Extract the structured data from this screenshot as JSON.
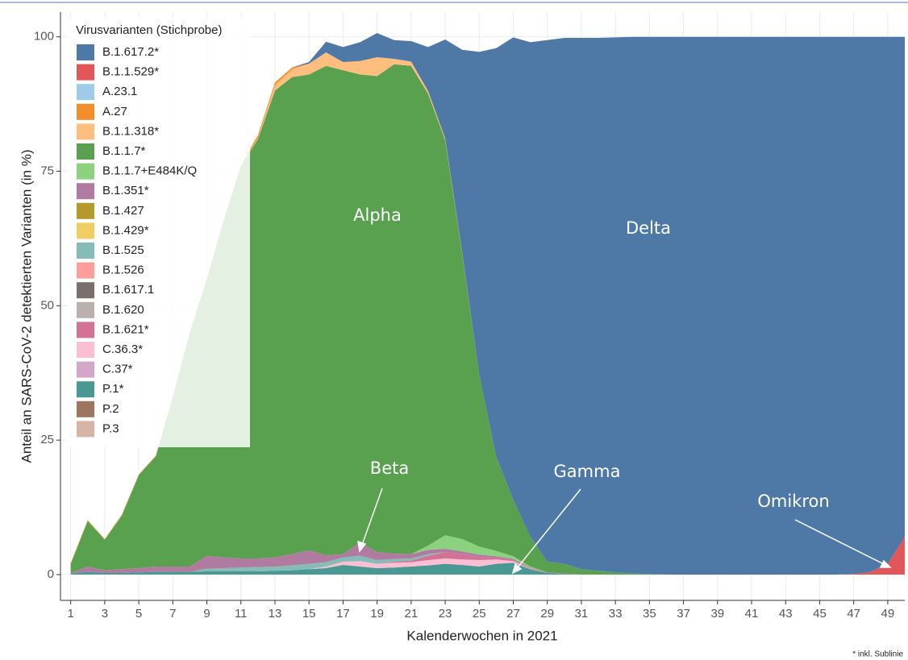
{
  "chart_data": {
    "type": "stacked-area",
    "ylabel": "Anteil an SARS-CoV-2 detektierten Varianten (in %)",
    "xlabel": "Kalenderwochen in 2021",
    "legend_title": "Virusvarianten (Stichprobe)",
    "footnote": "* inkl. Sublinie",
    "annotations": [
      "Alpha",
      "Delta",
      "Beta",
      "Gamma",
      "Omikron"
    ],
    "grid": true,
    "xlim": [
      0.4,
      50
    ],
    "ylim": [
      -4.8,
      104.6
    ],
    "xticks": [
      1,
      3,
      5,
      7,
      9,
      11,
      13,
      15,
      17,
      19,
      21,
      23,
      25,
      27,
      29,
      31,
      33,
      35,
      37,
      39,
      41,
      43,
      45,
      47,
      49
    ],
    "yticks": [
      0,
      25,
      50,
      75,
      100
    ],
    "x": [
      1,
      2,
      3,
      4,
      5,
      6,
      7,
      8,
      9,
      10,
      11,
      12,
      13,
      14,
      15,
      16,
      17,
      18,
      19,
      20,
      21,
      22,
      23,
      24,
      25,
      26,
      27,
      28,
      29,
      30,
      31,
      32,
      33,
      34,
      35,
      36,
      37,
      38,
      39,
      40,
      41,
      42,
      43,
      44,
      45,
      46,
      47,
      48,
      49,
      50
    ],
    "series": [
      {
        "name": "B.1.617.2*",
        "color": "#4e79a7",
        "values": [
          0,
          0,
          0,
          0,
          0,
          0,
          0,
          0,
          0,
          0,
          0,
          0,
          0,
          0,
          0.3,
          2,
          2.8,
          3.5,
          4.5,
          3.5,
          3.8,
          8.2,
          18.4,
          37.8,
          60,
          76,
          86,
          92,
          97,
          97.8,
          98.8,
          99.1,
          99.5,
          99.8,
          99.9,
          100,
          100,
          100,
          100,
          100,
          100,
          100,
          100,
          100,
          100,
          100,
          99.9,
          99.5,
          98,
          93
        ]
      },
      {
        "name": "B.1.1.529*",
        "color": "#e15759",
        "values": [
          0,
          0,
          0,
          0,
          0,
          0,
          0,
          0,
          0,
          0,
          0,
          0,
          0,
          0,
          0,
          0,
          0,
          0,
          0,
          0,
          0,
          0,
          0,
          0,
          0,
          0,
          0,
          0,
          0,
          0,
          0,
          0,
          0,
          0,
          0,
          0,
          0,
          0,
          0,
          0,
          0,
          0,
          0,
          0,
          0,
          0,
          0.1,
          0.5,
          2,
          7
        ]
      },
      {
        "name": "A.23.1",
        "color": "#a0cbe8",
        "values": [
          0,
          0,
          0,
          0,
          0,
          0,
          0,
          0,
          0,
          0,
          0,
          0,
          0,
          0,
          0,
          0,
          0,
          0,
          0,
          0,
          0,
          0,
          0,
          0,
          0,
          0,
          0,
          0,
          0,
          0,
          0,
          0,
          0,
          0,
          0,
          0,
          0,
          0,
          0,
          0,
          0,
          0,
          0,
          0,
          0,
          0,
          0,
          0,
          0,
          0
        ]
      },
      {
        "name": "A.27",
        "color": "#f28e2b",
        "values": [
          0,
          0,
          0,
          0,
          0,
          0,
          0,
          0,
          0,
          0,
          0,
          0.5,
          0.5,
          0.3,
          0,
          0,
          0,
          0,
          0,
          0,
          0,
          0,
          0,
          0,
          0,
          0,
          0,
          0,
          0,
          0,
          0,
          0,
          0,
          0,
          0,
          0,
          0,
          0,
          0,
          0,
          0,
          0,
          0,
          0,
          0,
          0,
          0,
          0,
          0,
          0
        ]
      },
      {
        "name": "B.1.1.318*",
        "color": "#ffbe7d",
        "values": [
          0.2,
          0.2,
          0.2,
          0.2,
          0.2,
          0.2,
          0.2,
          0.2,
          0.2,
          0.2,
          0.2,
          0.2,
          1,
          1.5,
          2,
          2.5,
          1.5,
          2.5,
          3.5,
          1,
          0.8,
          0.5,
          0.3,
          0.2,
          0,
          0,
          0,
          0,
          0,
          0,
          0,
          0,
          0,
          0,
          0,
          0,
          0,
          0,
          0,
          0,
          0,
          0,
          0,
          0,
          0,
          0,
          0,
          0,
          0,
          0
        ]
      },
      {
        "name": "B.1.1.7*",
        "color": "#59a14f",
        "values": [
          1.7,
          8.5,
          5.7,
          10,
          17.3,
          20.5,
          31.5,
          43.5,
          51.5,
          62.8,
          73,
          78,
          86.8,
          88.7,
          88.5,
          91,
          90,
          87,
          88.5,
          91,
          90.8,
          84,
          73.5,
          53,
          32,
          17.5,
          10.5,
          5.5,
          2,
          1.8,
          1,
          0.7,
          0.4,
          0.2,
          0.1,
          0,
          0,
          0,
          0,
          0,
          0,
          0,
          0,
          0,
          0,
          0,
          0,
          0,
          0,
          0
        ]
      },
      {
        "name": "B.1.1.7+E484K/Q",
        "color": "#8cd17d",
        "values": [
          0,
          0,
          0,
          0,
          0,
          0,
          0,
          0,
          0,
          0,
          0,
          0,
          0,
          0,
          0,
          0,
          0,
          0,
          0,
          0,
          0,
          0.8,
          2.5,
          2.3,
          1.5,
          1,
          0.5,
          0.2,
          0,
          0,
          0,
          0,
          0,
          0,
          0,
          0,
          0,
          0,
          0,
          0,
          0,
          0,
          0,
          0,
          0,
          0,
          0,
          0,
          0,
          0
        ]
      },
      {
        "name": "B.1.351*",
        "color": "#b07aa1",
        "values": [
          0.1,
          1,
          0.5,
          0.7,
          0.8,
          1,
          1,
          1,
          2.4,
          2,
          1.7,
          1.6,
          1.7,
          2.1,
          2.5,
          1.3,
          0.6,
          2.5,
          1.5,
          1,
          0.8,
          0.8,
          0.6,
          0.5,
          0.4,
          0.3,
          0.2,
          0.1,
          0.1,
          0.1,
          0,
          0,
          0,
          0,
          0,
          0,
          0,
          0,
          0,
          0,
          0,
          0,
          0,
          0,
          0,
          0,
          0,
          0,
          0,
          0
        ]
      },
      {
        "name": "B.1.427",
        "color": "#b6992d",
        "values": [
          0,
          0,
          0,
          0,
          0,
          0,
          0,
          0,
          0,
          0,
          0,
          0,
          0,
          0,
          0,
          0,
          0,
          0,
          0,
          0,
          0,
          0,
          0,
          0,
          0,
          0,
          0,
          0,
          0,
          0,
          0,
          0,
          0,
          0,
          0,
          0,
          0,
          0,
          0,
          0,
          0,
          0,
          0,
          0,
          0,
          0,
          0,
          0,
          0,
          0
        ]
      },
      {
        "name": "B.1.429*",
        "color": "#f1ce63",
        "values": [
          0,
          0,
          0,
          0,
          0,
          0,
          0,
          0,
          0,
          0,
          0,
          0,
          0,
          0,
          0,
          0,
          0,
          0,
          0,
          0,
          0,
          0,
          0,
          0,
          0,
          0,
          0,
          0,
          0,
          0,
          0,
          0,
          0,
          0,
          0,
          0,
          0,
          0,
          0,
          0,
          0,
          0,
          0,
          0,
          0,
          0,
          0,
          0,
          0,
          0
        ]
      },
      {
        "name": "B.1.525",
        "color": "#86bcb6",
        "values": [
          0,
          0,
          0,
          0,
          0,
          0,
          0,
          0,
          0.5,
          0.6,
          0.7,
          0.8,
          0.8,
          0.9,
          1,
          0.8,
          0.8,
          1,
          0.7,
          0.5,
          0.4,
          0.3,
          0,
          0,
          0,
          0,
          0,
          0,
          0,
          0,
          0,
          0,
          0,
          0,
          0,
          0,
          0,
          0,
          0,
          0,
          0,
          0,
          0,
          0,
          0,
          0,
          0,
          0,
          0,
          0
        ]
      },
      {
        "name": "B.1.526",
        "color": "#ff9d9a",
        "values": [
          0,
          0,
          0,
          0,
          0,
          0,
          0,
          0,
          0,
          0,
          0,
          0,
          0,
          0,
          0,
          0,
          0,
          0,
          0,
          0,
          0,
          0,
          0,
          0,
          0,
          0,
          0,
          0,
          0,
          0,
          0,
          0,
          0,
          0,
          0,
          0,
          0,
          0,
          0,
          0,
          0,
          0,
          0,
          0,
          0,
          0,
          0,
          0,
          0,
          0
        ]
      },
      {
        "name": "B.1.617.1",
        "color": "#79706e",
        "values": [
          0,
          0,
          0,
          0,
          0,
          0,
          0,
          0,
          0,
          0,
          0,
          0,
          0,
          0,
          0,
          0,
          0,
          0,
          0,
          0,
          0,
          0,
          0,
          0,
          0,
          0,
          0,
          0,
          0,
          0,
          0,
          0,
          0,
          0,
          0,
          0,
          0,
          0,
          0,
          0,
          0,
          0,
          0,
          0,
          0,
          0,
          0,
          0,
          0,
          0
        ]
      },
      {
        "name": "B.1.620",
        "color": "#bab0ac",
        "values": [
          0,
          0,
          0,
          0,
          0,
          0,
          0,
          0,
          0,
          0,
          0,
          0,
          0,
          0,
          0,
          0,
          0,
          0,
          0,
          0,
          0,
          0,
          0,
          0,
          0,
          0,
          0,
          0,
          0,
          0,
          0,
          0,
          0,
          0,
          0,
          0,
          0,
          0,
          0,
          0,
          0,
          0,
          0,
          0,
          0,
          0,
          0,
          0,
          0,
          0
        ]
      },
      {
        "name": "B.1.621*",
        "color": "#d37295",
        "values": [
          0,
          0,
          0,
          0,
          0,
          0,
          0,
          0,
          0,
          0,
          0,
          0,
          0,
          0,
          0,
          0,
          0,
          0,
          0,
          0.2,
          0.3,
          0.8,
          1.2,
          1,
          0.6,
          0.3,
          0.2,
          0.1,
          0,
          0,
          0,
          0,
          0,
          0,
          0,
          0,
          0,
          0,
          0,
          0,
          0,
          0,
          0,
          0,
          0,
          0,
          0,
          0,
          0,
          0
        ]
      },
      {
        "name": "C.36.3*",
        "color": "#fabfd2",
        "values": [
          0,
          0,
          0,
          0,
          0,
          0,
          0,
          0,
          0,
          0,
          0,
          0,
          0,
          0,
          0,
          0.3,
          0.6,
          1,
          0.8,
          0.9,
          0.8,
          1,
          1,
          1,
          1.2,
          0.8,
          0.3,
          0.1,
          0,
          0,
          0,
          0,
          0,
          0,
          0,
          0,
          0,
          0,
          0,
          0,
          0,
          0,
          0,
          0,
          0,
          0,
          0,
          0,
          0,
          0
        ]
      },
      {
        "name": "C.37*",
        "color": "#d4a6c8",
        "values": [
          0,
          0,
          0,
          0,
          0,
          0,
          0,
          0,
          0,
          0,
          0,
          0,
          0,
          0,
          0,
          0,
          0,
          0,
          0,
          0,
          0,
          0,
          0,
          0,
          0,
          0,
          0,
          0,
          0,
          0,
          0,
          0,
          0,
          0,
          0,
          0,
          0,
          0,
          0,
          0,
          0,
          0,
          0,
          0,
          0,
          0,
          0,
          0,
          0,
          0
        ]
      },
      {
        "name": "P.1*",
        "color": "#499894",
        "values": [
          0.2,
          0.5,
          0.3,
          0.3,
          0.4,
          0.5,
          0.5,
          0.5,
          0.6,
          0.6,
          0.6,
          0.6,
          0.7,
          0.8,
          1,
          1.2,
          1.8,
          1.5,
          1.2,
          1.3,
          1.5,
          1.7,
          2,
          1.8,
          1.5,
          2,
          2.2,
          1,
          0.3,
          0.1,
          0,
          0,
          0,
          0,
          0,
          0,
          0,
          0,
          0,
          0,
          0,
          0,
          0,
          0,
          0,
          0,
          0,
          0,
          0,
          0
        ]
      },
      {
        "name": "P.2",
        "color": "#9d7660",
        "values": [
          0,
          0,
          0,
          0,
          0,
          0,
          0,
          0,
          0,
          0,
          0,
          0,
          0,
          0,
          0,
          0,
          0,
          0,
          0,
          0,
          0,
          0,
          0,
          0,
          0,
          0,
          0,
          0,
          0,
          0,
          0,
          0,
          0,
          0,
          0,
          0,
          0,
          0,
          0,
          0,
          0,
          0,
          0,
          0,
          0,
          0,
          0,
          0,
          0,
          0
        ]
      },
      {
        "name": "P.3",
        "color": "#d7b5a6",
        "values": [
          0,
          0,
          0,
          0,
          0,
          0,
          0,
          0,
          0,
          0,
          0,
          0,
          0,
          0,
          0,
          0,
          0,
          0,
          0,
          0,
          0,
          0,
          0,
          0,
          0,
          0,
          0,
          0,
          0,
          0,
          0,
          0,
          0,
          0,
          0,
          0,
          0,
          0,
          0,
          0,
          0,
          0,
          0,
          0,
          0,
          0,
          0,
          0,
          0,
          0
        ]
      }
    ]
  }
}
